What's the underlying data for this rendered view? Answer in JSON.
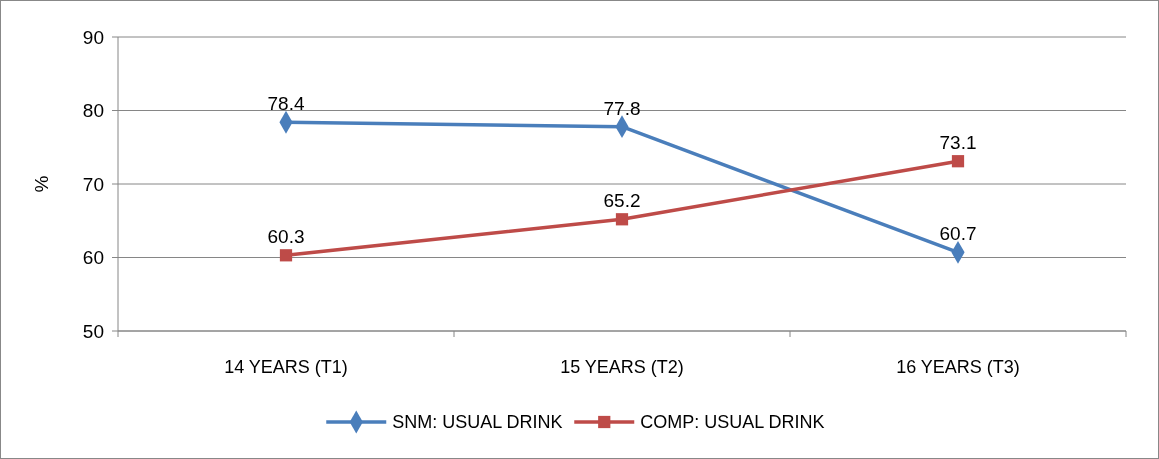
{
  "chart_data": {
    "type": "line",
    "ylabel": "%",
    "categories": [
      "14 YEARS (T1)",
      "15 YEARS (T2)",
      "16 YEARS (T3)"
    ],
    "series": [
      {
        "name": "SNM: USUAL DRINK",
        "color": "#4a7ebb",
        "marker": "diamond",
        "values": [
          78.4,
          77.8,
          60.7
        ]
      },
      {
        "name": "COMP: USUAL DRINK",
        "color": "#be4b48",
        "marker": "square",
        "values": [
          60.3,
          65.2,
          73.1
        ]
      }
    ],
    "ylim": [
      50,
      90
    ],
    "yticks": [
      50,
      60,
      70,
      80,
      90
    ],
    "grid": "y",
    "legend": "bottom",
    "data_labels": true
  }
}
